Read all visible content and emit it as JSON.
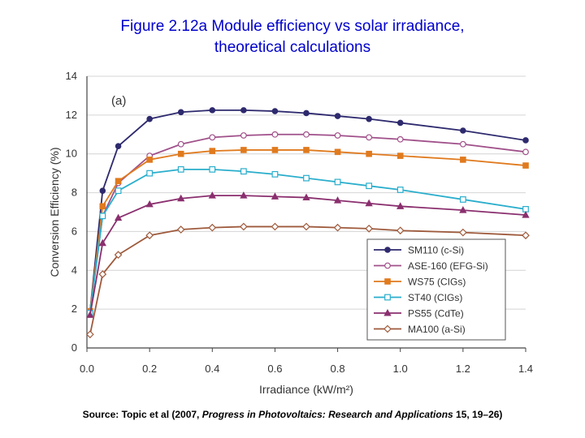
{
  "page": {
    "title_line1": "Figure 2.12a Module efficiency vs solar irradiance,",
    "title_line2": "theoretical calculations",
    "source_prefix": "Source: Topic et al (2007, ",
    "source_italic": "Progress in Photovoltaics: Research and Applications",
    "source_suffix": " 15, 19–26)"
  },
  "chart_data": {
    "type": "line",
    "panel_label": "(a)",
    "xlabel": "Irradiance (kW/m²)",
    "ylabel": "Conversion Efficiency (%)",
    "xlim": [
      0.0,
      1.4
    ],
    "ylim": [
      0,
      14
    ],
    "xticks": [
      "0.0",
      "0.2",
      "0.4",
      "0.6",
      "0.8",
      "1.0",
      "1.2",
      "1.4"
    ],
    "yticks": [
      "0",
      "2",
      "4",
      "6",
      "8",
      "10",
      "12",
      "14"
    ],
    "legend_position": "bottom-right",
    "series": [
      {
        "name": "SM110 (c-Si)",
        "color": "#2e2a6e",
        "marker": "circle-filled",
        "x": [
          0.01,
          0.05,
          0.1,
          0.2,
          0.3,
          0.4,
          0.5,
          0.6,
          0.7,
          0.8,
          0.9,
          1.0,
          1.2,
          1.4
        ],
        "y": [
          1.9,
          8.1,
          10.4,
          11.8,
          12.15,
          12.25,
          12.25,
          12.2,
          12.1,
          11.95,
          11.8,
          11.6,
          11.2,
          10.7
        ]
      },
      {
        "name": "ASE-160 (EFG-Si)",
        "color": "#a0508a",
        "marker": "circle-open",
        "x": [
          0.01,
          0.05,
          0.1,
          0.2,
          0.3,
          0.4,
          0.5,
          0.6,
          0.7,
          0.8,
          0.9,
          1.0,
          1.2,
          1.4
        ],
        "y": [
          1.9,
          6.8,
          8.5,
          9.9,
          10.5,
          10.85,
          10.95,
          11.0,
          11.0,
          10.95,
          10.85,
          10.75,
          10.5,
          10.1
        ]
      },
      {
        "name": "WS75 (CIGs)",
        "color": "#e07a1e",
        "marker": "square-filled",
        "x": [
          0.01,
          0.05,
          0.1,
          0.2,
          0.3,
          0.4,
          0.5,
          0.6,
          0.7,
          0.8,
          0.9,
          1.0,
          1.2,
          1.4
        ],
        "y": [
          1.9,
          7.3,
          8.6,
          9.7,
          10.0,
          10.15,
          10.2,
          10.2,
          10.2,
          10.1,
          10.0,
          9.9,
          9.7,
          9.4
        ]
      },
      {
        "name": "ST40 (CIGs)",
        "color": "#2aaecc",
        "marker": "square-open",
        "x": [
          0.01,
          0.05,
          0.1,
          0.2,
          0.3,
          0.4,
          0.5,
          0.6,
          0.7,
          0.8,
          0.9,
          1.0,
          1.2,
          1.4
        ],
        "y": [
          1.8,
          6.8,
          8.1,
          9.0,
          9.2,
          9.2,
          9.1,
          8.95,
          8.75,
          8.55,
          8.35,
          8.15,
          7.65,
          7.15
        ]
      },
      {
        "name": "PS55 (CdTe)",
        "color": "#8a2f6e",
        "marker": "triangle-filled",
        "x": [
          0.01,
          0.05,
          0.1,
          0.2,
          0.3,
          0.4,
          0.5,
          0.6,
          0.7,
          0.8,
          0.9,
          1.0,
          1.2,
          1.4
        ],
        "y": [
          1.7,
          5.4,
          6.7,
          7.4,
          7.7,
          7.85,
          7.85,
          7.8,
          7.75,
          7.6,
          7.45,
          7.3,
          7.1,
          6.85
        ]
      },
      {
        "name": "MA100 (a-Si)",
        "color": "#9e5a3c",
        "marker": "diamond-open",
        "x": [
          0.01,
          0.05,
          0.1,
          0.2,
          0.3,
          0.4,
          0.5,
          0.6,
          0.7,
          0.8,
          0.9,
          1.0,
          1.2,
          1.4
        ],
        "y": [
          0.7,
          3.8,
          4.8,
          5.8,
          6.1,
          6.2,
          6.25,
          6.25,
          6.25,
          6.2,
          6.15,
          6.05,
          5.95,
          5.8
        ]
      }
    ]
  }
}
